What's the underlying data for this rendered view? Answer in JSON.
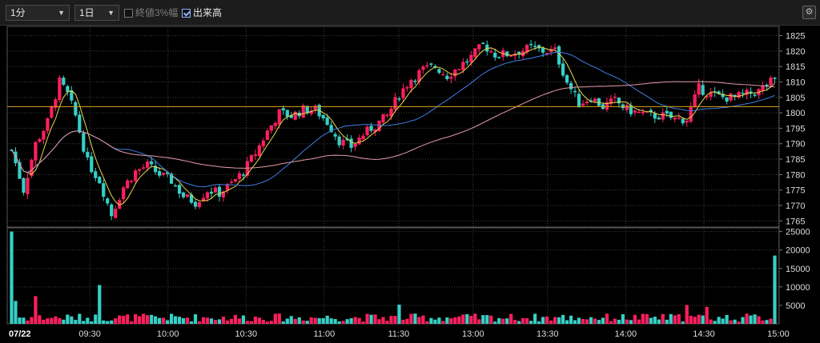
{
  "toolbar": {
    "interval": "1分",
    "period": "1日",
    "closing_3pct_label": "終値3%幅",
    "closing_3pct_checked": false,
    "volume_label": "出来高",
    "volume_checked": true,
    "settings_icon": "gear-icon"
  },
  "colors": {
    "up": "#ff1f5e",
    "down": "#36d0c6",
    "ma_short": "#e8d84a",
    "ma_mid": "#3f7fe6",
    "ma_long": "#e59aa8",
    "prev_close": "#d9a61c",
    "grid": "#404040"
  },
  "chart_data": {
    "type": "candlestick",
    "date": "07/22",
    "time_labels": [
      "09:30",
      "10:00",
      "10:30",
      "11:00",
      "11:30",
      "13:00",
      "13:30",
      "14:00",
      "14:30",
      "15:00"
    ],
    "price_ticks": [
      1825,
      1820,
      1815,
      1810,
      1805,
      1800,
      1795,
      1790,
      1785,
      1780,
      1775,
      1770,
      1765
    ],
    "price_ylim": [
      1763,
      1828
    ],
    "volume_ticks": [
      25000,
      20000,
      15000,
      10000,
      5000
    ],
    "volume_ylim": [
      0,
      26000
    ],
    "reference_line": 1802,
    "price_path": [
      {
        "t": 0,
        "p": 1788
      },
      {
        "t": 3,
        "p": 1775
      },
      {
        "t": 6,
        "p": 1790
      },
      {
        "t": 9,
        "p": 1797
      },
      {
        "t": 12,
        "p": 1810
      },
      {
        "t": 14,
        "p": 1806
      },
      {
        "t": 16,
        "p": 1799
      },
      {
        "t": 19,
        "p": 1784
      },
      {
        "t": 22,
        "p": 1778
      },
      {
        "t": 25,
        "p": 1767
      },
      {
        "t": 28,
        "p": 1776
      },
      {
        "t": 31,
        "p": 1781
      },
      {
        "t": 34,
        "p": 1783
      },
      {
        "t": 37,
        "p": 1780
      },
      {
        "t": 40,
        "p": 1778
      },
      {
        "t": 43,
        "p": 1773
      },
      {
        "t": 46,
        "p": 1771
      },
      {
        "t": 49,
        "p": 1775
      },
      {
        "t": 52,
        "p": 1774
      },
      {
        "t": 55,
        "p": 1777
      },
      {
        "t": 58,
        "p": 1781
      },
      {
        "t": 61,
        "p": 1787
      },
      {
        "t": 64,
        "p": 1794
      },
      {
        "t": 67,
        "p": 1800
      },
      {
        "t": 70,
        "p": 1799
      },
      {
        "t": 73,
        "p": 1801
      },
      {
        "t": 76,
        "p": 1801
      },
      {
        "t": 79,
        "p": 1797
      },
      {
        "t": 82,
        "p": 1791
      },
      {
        "t": 85,
        "p": 1789
      },
      {
        "t": 88,
        "p": 1793
      },
      {
        "t": 91,
        "p": 1796
      },
      {
        "t": 94,
        "p": 1799
      },
      {
        "t": 97,
        "p": 1806
      },
      {
        "t": 100,
        "p": 1811
      },
      {
        "t": 103,
        "p": 1814
      },
      {
        "t": 106,
        "p": 1815
      },
      {
        "t": 109,
        "p": 1812
      },
      {
        "t": 112,
        "p": 1815
      },
      {
        "t": 115,
        "p": 1818
      },
      {
        "t": 118,
        "p": 1822
      },
      {
        "t": 121,
        "p": 1819
      },
      {
        "t": 124,
        "p": 1819
      },
      {
        "t": 127,
        "p": 1820
      },
      {
        "t": 130,
        "p": 1821
      },
      {
        "t": 133,
        "p": 1820
      },
      {
        "t": 136,
        "p": 1820
      },
      {
        "t": 139,
        "p": 1810
      },
      {
        "t": 142,
        "p": 1803
      },
      {
        "t": 145,
        "p": 1805
      },
      {
        "t": 148,
        "p": 1802
      },
      {
        "t": 151,
        "p": 1804
      },
      {
        "t": 154,
        "p": 1801
      },
      {
        "t": 157,
        "p": 1800
      },
      {
        "t": 160,
        "p": 1799
      },
      {
        "t": 163,
        "p": 1799
      },
      {
        "t": 166,
        "p": 1798
      },
      {
        "t": 169,
        "p": 1798
      },
      {
        "t": 172,
        "p": 1808
      },
      {
        "t": 175,
        "p": 1806
      },
      {
        "t": 178,
        "p": 1805
      },
      {
        "t": 181,
        "p": 1805
      },
      {
        "t": 184,
        "p": 1806
      },
      {
        "t": 187,
        "p": 1807
      },
      {
        "t": 190,
        "p": 1810
      }
    ]
  }
}
